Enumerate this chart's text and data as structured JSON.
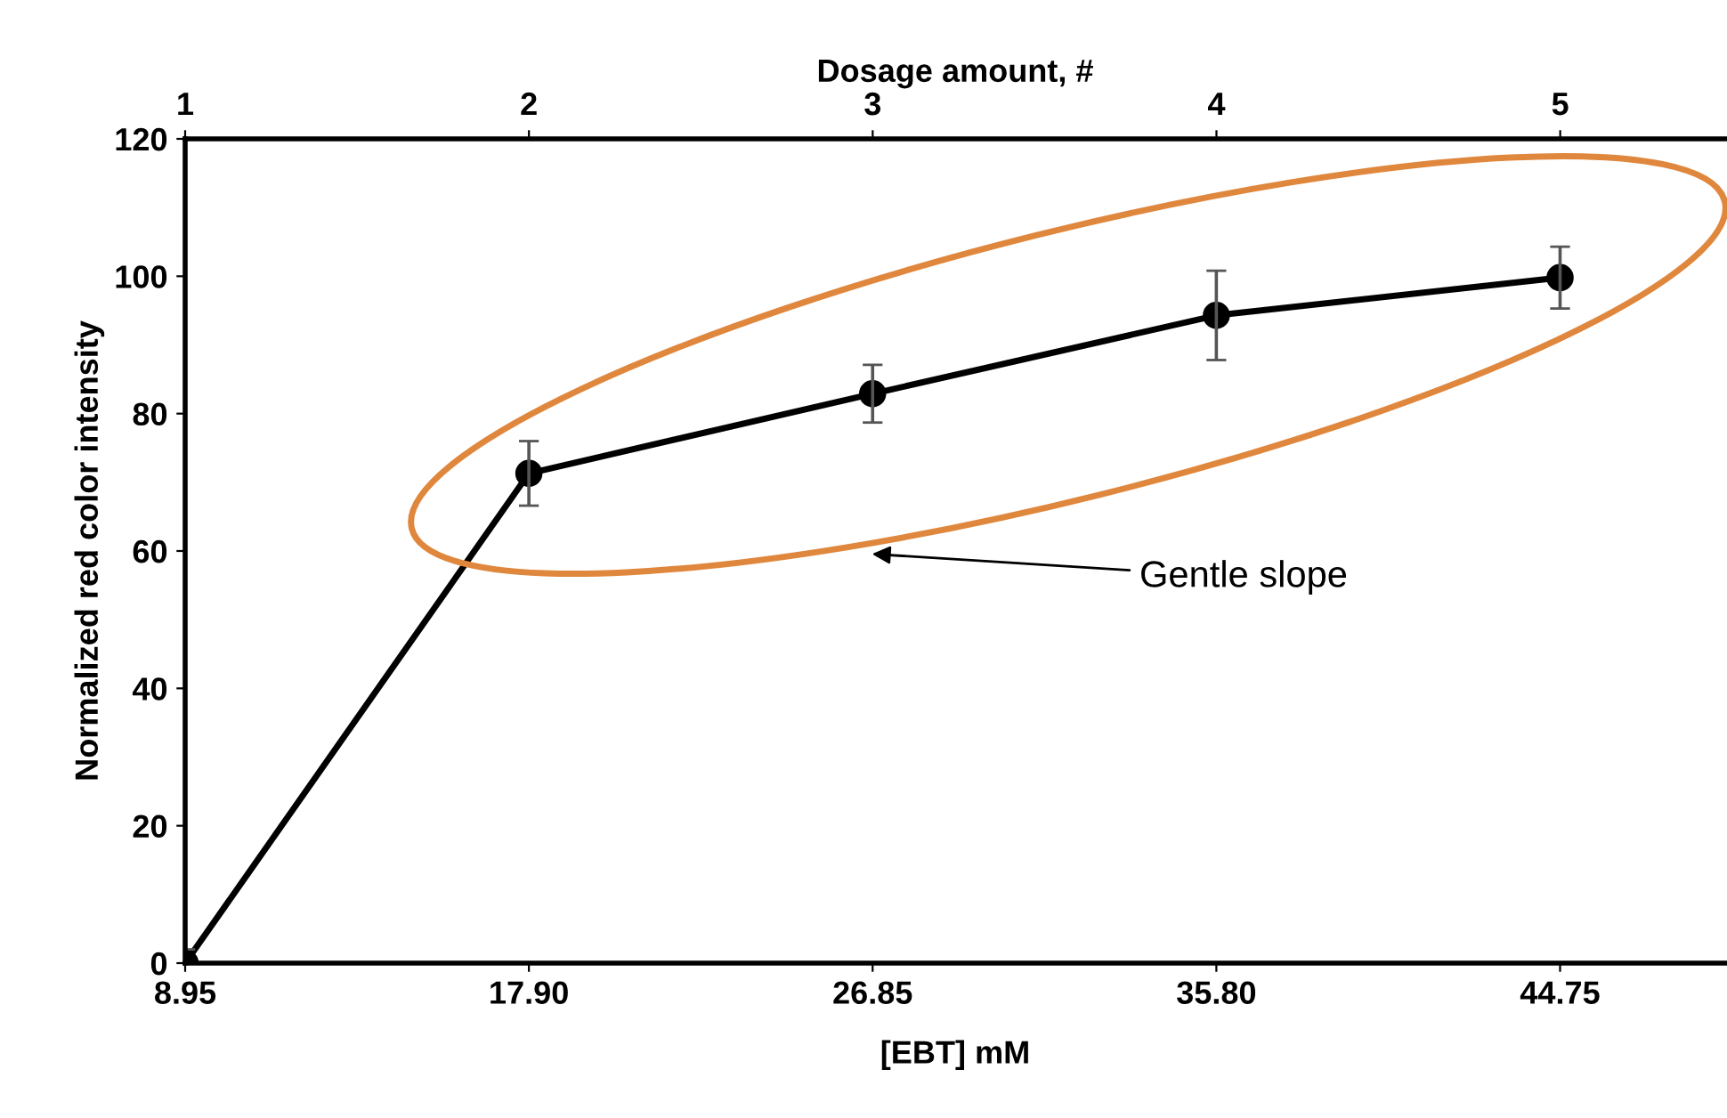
{
  "chart_data": {
    "type": "line",
    "xlabel": "[EBT] mM",
    "ylabel": "Normalized red color intensity",
    "x2label": "Dosage amount, #",
    "x": [
      8.95,
      17.9,
      26.85,
      35.8,
      44.75
    ],
    "series": [
      {
        "color": "#000000",
        "values": [
          0,
          71.3,
          82.9,
          94.3,
          99.8
        ],
        "errors": [
          2,
          4.7,
          4.2,
          6.5,
          4.5
        ]
      }
    ],
    "xlim": [
      8.95,
      49.05
    ],
    "xticks": [
      {
        "value": 8.95,
        "label": "8.95"
      },
      {
        "value": 17.9,
        "label": "17.90"
      },
      {
        "value": 26.85,
        "label": "26.85"
      },
      {
        "value": 35.8,
        "label": "35.80"
      },
      {
        "value": 44.75,
        "label": "44.75"
      }
    ],
    "x2lim": [
      1,
      5.48
    ],
    "x2ticks": [
      1,
      2,
      3,
      4,
      5
    ],
    "ylim": [
      0,
      120
    ],
    "yticks": [
      0,
      20,
      40,
      60,
      80,
      100,
      120
    ],
    "marker": "circle",
    "line_style": "solid",
    "grid": false,
    "legend": false,
    "annotations": [
      "Gentle slope"
    ]
  }
}
